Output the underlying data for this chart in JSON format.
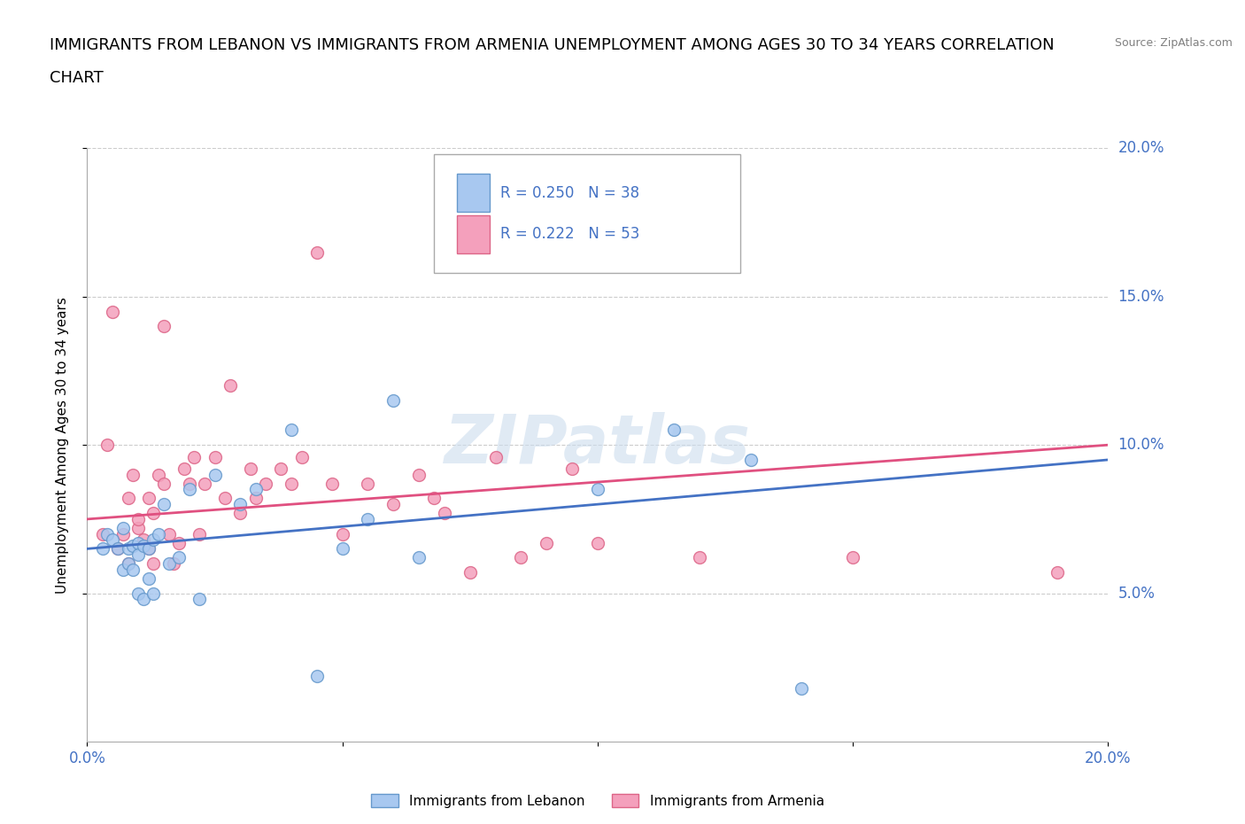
{
  "title_line1": "IMMIGRANTS FROM LEBANON VS IMMIGRANTS FROM ARMENIA UNEMPLOYMENT AMONG AGES 30 TO 34 YEARS CORRELATION",
  "title_line2": "CHART",
  "source": "Source: ZipAtlas.com",
  "ylabel": "Unemployment Among Ages 30 to 34 years",
  "xlim": [
    0.0,
    0.2
  ],
  "ylim": [
    0.0,
    0.2
  ],
  "xticks": [
    0.0,
    0.05,
    0.1,
    0.15,
    0.2
  ],
  "yticks": [
    0.05,
    0.1,
    0.15,
    0.2
  ],
  "xtick_labels": [
    "0.0%",
    "",
    "",
    "",
    "20.0%"
  ],
  "ytick_labels_right": [
    "5.0%",
    "10.0%",
    "15.0%",
    "20.0%"
  ],
  "lebanon_color": "#A8C8F0",
  "armenia_color": "#F4A0BC",
  "lebanon_edge_color": "#6699CC",
  "armenia_edge_color": "#DD6688",
  "lebanon_line_color": "#4472C4",
  "armenia_line_color": "#E05080",
  "legend_text_color": "#4472C4",
  "watermark": "ZIPatlas",
  "lebanon_scatter_x": [
    0.003,
    0.004,
    0.005,
    0.006,
    0.007,
    0.007,
    0.008,
    0.008,
    0.009,
    0.009,
    0.01,
    0.01,
    0.01,
    0.011,
    0.011,
    0.012,
    0.012,
    0.013,
    0.013,
    0.014,
    0.015,
    0.016,
    0.018,
    0.02,
    0.022,
    0.025,
    0.03,
    0.033,
    0.04,
    0.045,
    0.05,
    0.055,
    0.06,
    0.065,
    0.1,
    0.115,
    0.13,
    0.14
  ],
  "lebanon_scatter_y": [
    0.065,
    0.07,
    0.068,
    0.065,
    0.072,
    0.058,
    0.065,
    0.06,
    0.066,
    0.058,
    0.067,
    0.063,
    0.05,
    0.066,
    0.048,
    0.065,
    0.055,
    0.068,
    0.05,
    0.07,
    0.08,
    0.06,
    0.062,
    0.085,
    0.048,
    0.09,
    0.08,
    0.085,
    0.105,
    0.022,
    0.065,
    0.075,
    0.115,
    0.062,
    0.085,
    0.105,
    0.095,
    0.018
  ],
  "armenia_scatter_x": [
    0.003,
    0.004,
    0.005,
    0.006,
    0.007,
    0.008,
    0.008,
    0.009,
    0.01,
    0.01,
    0.011,
    0.012,
    0.012,
    0.013,
    0.013,
    0.014,
    0.015,
    0.015,
    0.016,
    0.017,
    0.018,
    0.019,
    0.02,
    0.021,
    0.022,
    0.023,
    0.025,
    0.027,
    0.028,
    0.03,
    0.032,
    0.033,
    0.035,
    0.038,
    0.04,
    0.042,
    0.045,
    0.048,
    0.05,
    0.055,
    0.06,
    0.065,
    0.068,
    0.07,
    0.075,
    0.08,
    0.085,
    0.09,
    0.095,
    0.1,
    0.12,
    0.15,
    0.19
  ],
  "armenia_scatter_y": [
    0.07,
    0.1,
    0.145,
    0.065,
    0.07,
    0.06,
    0.082,
    0.09,
    0.072,
    0.075,
    0.068,
    0.082,
    0.065,
    0.06,
    0.077,
    0.09,
    0.087,
    0.14,
    0.07,
    0.06,
    0.067,
    0.092,
    0.087,
    0.096,
    0.07,
    0.087,
    0.096,
    0.082,
    0.12,
    0.077,
    0.092,
    0.082,
    0.087,
    0.092,
    0.087,
    0.096,
    0.165,
    0.087,
    0.07,
    0.087,
    0.08,
    0.09,
    0.082,
    0.077,
    0.057,
    0.096,
    0.062,
    0.067,
    0.092,
    0.067,
    0.062,
    0.062,
    0.057
  ],
  "lebanon_trend_x": [
    0.0,
    0.2
  ],
  "lebanon_trend_y": [
    0.065,
    0.095
  ],
  "armenia_trend_x": [
    0.0,
    0.2
  ],
  "armenia_trend_y": [
    0.075,
    0.1
  ],
  "background_color": "#FFFFFF",
  "grid_color": "#CCCCCC",
  "tick_color": "#4472C4",
  "title_fontsize": 13,
  "label_fontsize": 11,
  "tick_fontsize": 12
}
